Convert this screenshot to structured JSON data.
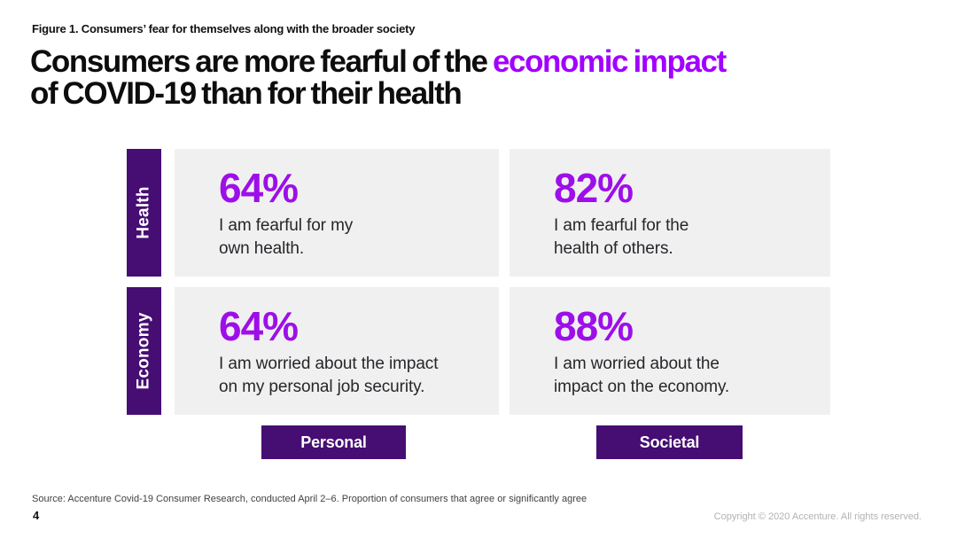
{
  "page": {
    "figure_caption": "Figure 1. Consumers’ fear for themselves along with the broader society",
    "title": {
      "line1_black": "Consumers are more fearful of the ",
      "line1_purple": "economic impact",
      "line2": "of COVID-19 than for their health"
    },
    "source": "Source: Accenture Covid-19 Consumer Research, conducted April 2–6. Proportion of consumers that agree or significantly agree",
    "page_number": "4",
    "copyright": "Copyright © 2020 Accenture. All rights reserved."
  },
  "grid": {
    "rows": [
      {
        "label": "Health",
        "cells": [
          {
            "value": "64%",
            "line1": "I am fearful for my",
            "line2": "own health."
          },
          {
            "value": "82%",
            "line1": "I am fearful for the",
            "line2": "health of others."
          }
        ]
      },
      {
        "label": "Economy",
        "cells": [
          {
            "value": "64%",
            "line1": "I am worried about the impact",
            "line2": "on my personal job security."
          },
          {
            "value": "88%",
            "line1": "I am worried about the",
            "line2": "impact on the economy."
          }
        ]
      }
    ],
    "column_labels": {
      "left": "Personal",
      "right": "Societal"
    }
  },
  "colors": {
    "accent_purple": "#a100ff",
    "stat_purple": "#9d0fe8",
    "dark_purple": "#460d73",
    "card_gray": "#f0f0f0",
    "text_black": "#0d0d0d",
    "copyright_gray": "#b2b2b7"
  },
  "chart_data": {
    "type": "table",
    "title": "Consumers are more fearful of the economic impact of COVID-19 than for their health",
    "figure_label": "Figure 1. Consumers’ fear for themselves along with the broader society",
    "rows": [
      "Health",
      "Economy"
    ],
    "columns": [
      "Personal",
      "Societal"
    ],
    "unit": "%",
    "values": [
      [
        64,
        82
      ],
      [
        64,
        88
      ]
    ],
    "statements": [
      [
        "I am fearful for my own health.",
        "I am fearful for the health of others."
      ],
      [
        "I am worried about the impact on my personal job security.",
        "I am worried about the impact on the economy."
      ]
    ],
    "source": "Accenture Covid-19 Consumer Research, conducted April 2–6. Proportion of consumers that agree or significantly agree"
  }
}
